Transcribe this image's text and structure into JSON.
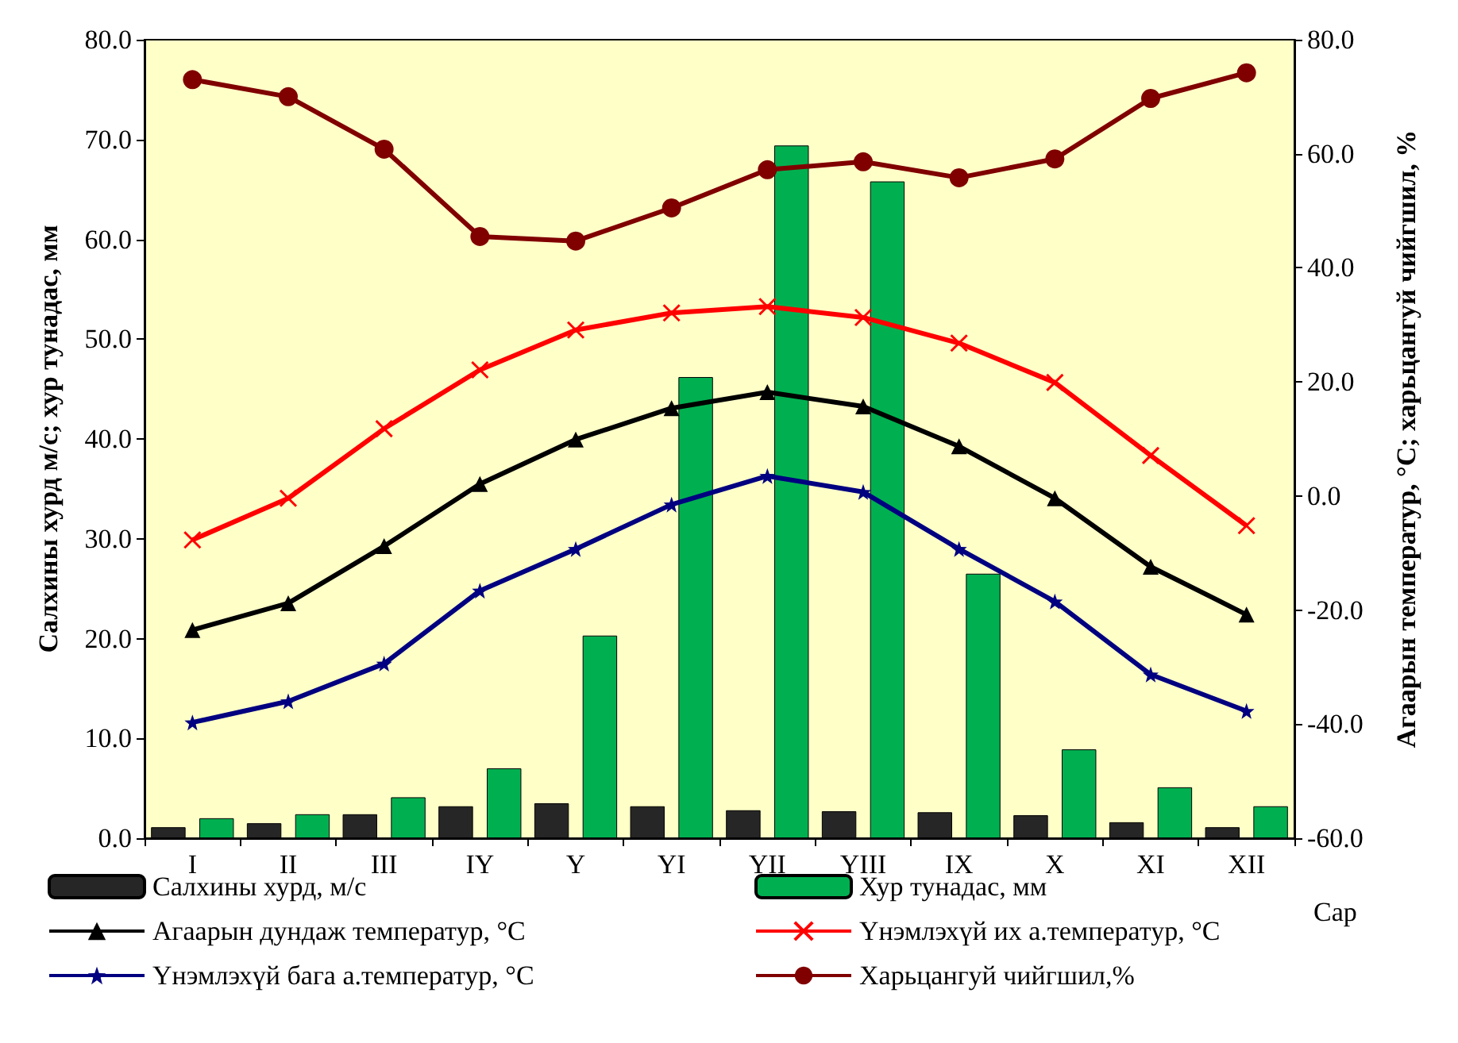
{
  "chart_data": {
    "type": "line",
    "xlabel": "Сар",
    "ylabel": "Салхины хурд м/с; хур тунадас, мм",
    "y2label": "Агаарын температур, °С; харьцангуй чийгшил, %",
    "categories": [
      "I",
      "II",
      "III",
      "IY",
      "Y",
      "YI",
      "YII",
      "YIII",
      "IX",
      "X",
      "XI",
      "XII"
    ],
    "ylim": [
      0,
      80
    ],
    "yticks": [
      {
        "value": 0,
        "label": "0.0"
      },
      {
        "value": 10,
        "label": "10.0"
      },
      {
        "value": 20,
        "label": "20.0"
      },
      {
        "value": 30,
        "label": "30.0"
      },
      {
        "value": 40,
        "label": "40.0"
      },
      {
        "value": 50,
        "label": "50.0"
      },
      {
        "value": 60,
        "label": "60.0"
      },
      {
        "value": 70,
        "label": "70.0"
      },
      {
        "value": 80,
        "label": "80.0"
      }
    ],
    "y2lim": [
      -60,
      80
    ],
    "y2ticks": [
      {
        "value": -60,
        "label": "-60.0"
      },
      {
        "value": -40,
        "label": "-40.0"
      },
      {
        "value": -20,
        "label": "-20.0"
      },
      {
        "value": 0,
        "label": "0.0"
      },
      {
        "value": 20,
        "label": "20.0"
      },
      {
        "value": 40,
        "label": "40.0"
      },
      {
        "value": 60,
        "label": "60.0"
      },
      {
        "value": 80,
        "label": "80.0"
      }
    ],
    "grid": false,
    "legend": "bottom",
    "series": [
      {
        "name": "Салхины хурд, м/с",
        "type": "bar",
        "color": "#262626",
        "values": [
          1.1,
          1.5,
          2.4,
          3.2,
          3.5,
          3.2,
          2.8,
          2.7,
          2.6,
          2.3,
          1.6,
          1.1
        ]
      },
      {
        "name": "Хур тунадас, мм",
        "type": "bar",
        "color": "#00b050",
        "values": [
          2.0,
          2.4,
          4.1,
          7.0,
          20.3,
          46.2,
          69.4,
          65.8,
          26.5,
          8.9,
          5.1,
          3.2
        ]
      },
      {
        "name": "Агаарын дундаж температур, °С",
        "axis": "y2",
        "marker": "triangle",
        "color": "#000000",
        "values": [
          -23.5,
          -18.8,
          -8.8,
          2.1,
          9.9,
          15.4,
          18.2,
          15.7,
          8.7,
          -0.4,
          -12.4,
          -20.8
        ]
      },
      {
        "name": "Үнэмлэхүй их а.температур, °С",
        "axis": "y2",
        "marker": "cross",
        "color": "#ff0000",
        "values": [
          -7.7,
          -0.4,
          11.8,
          22.1,
          29.1,
          32.1,
          33.2,
          31.3,
          26.8,
          19.9,
          7.1,
          -5.2
        ]
      },
      {
        "name": "Үнэмлэхүй бага а.температур, °С",
        "axis": "y2",
        "marker": "star",
        "color": "#000080",
        "values": [
          -39.7,
          -36.0,
          -29.4,
          -16.6,
          -9.3,
          -1.5,
          3.5,
          0.7,
          -9.3,
          -18.5,
          -31.3,
          -37.7
        ]
      },
      {
        "name": "Харьцангуй чийгшил,%",
        "axis": "y2",
        "marker": "circle",
        "color": "#800000",
        "values": [
          73.0,
          70.0,
          60.8,
          45.5,
          44.7,
          50.5,
          57.2,
          58.6,
          55.8,
          59.1,
          69.7,
          74.2
        ]
      }
    ]
  }
}
